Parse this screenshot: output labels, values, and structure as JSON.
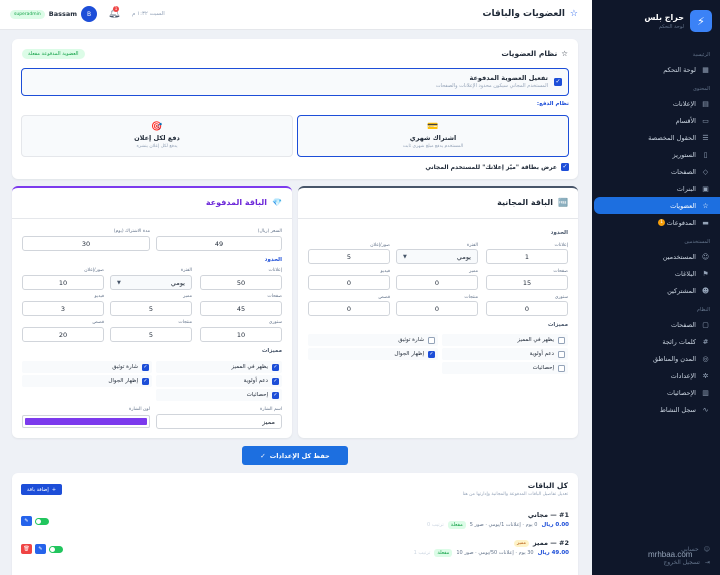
{
  "sidebar": {
    "brand_name": "حراج بلس",
    "brand_sub": "لوحة التحكم",
    "sections": [
      {
        "label": "الرئيسية",
        "items": [
          {
            "label": "لوحة التحكم",
            "icon": "grid-icon"
          }
        ]
      },
      {
        "label": "المحتوى",
        "items": [
          {
            "label": "الإعلانات",
            "icon": "document-icon"
          },
          {
            "label": "الأقسام",
            "icon": "folder-icon"
          },
          {
            "label": "الحقول المخصصة",
            "icon": "sliders-icon"
          },
          {
            "label": "الستوريز",
            "icon": "book-icon"
          },
          {
            "label": "الصفحات",
            "icon": "tag-icon"
          },
          {
            "label": "البنرات",
            "icon": "image-icon"
          },
          {
            "label": "العضويات",
            "icon": "star-icon",
            "active": true
          },
          {
            "label": "المدفوعات",
            "icon": "card-icon",
            "badge": "1"
          }
        ]
      },
      {
        "label": "المستخدمين",
        "items": [
          {
            "label": "المستخدمين",
            "icon": "users-icon"
          },
          {
            "label": "البلاغات",
            "icon": "flag-icon"
          },
          {
            "label": "المشتركين",
            "icon": "user-plus-icon"
          }
        ]
      },
      {
        "label": "النظام",
        "items": [
          {
            "label": "الصفحات",
            "icon": "pages-icon"
          },
          {
            "label": "كلمات رائجة",
            "icon": "hash-icon"
          },
          {
            "label": "المدن والمناطق",
            "icon": "globe-icon"
          },
          {
            "label": "الإعدادات",
            "icon": "gear-icon"
          },
          {
            "label": "الإحصائيات",
            "icon": "chart-icon"
          },
          {
            "label": "سجل النشاط",
            "icon": "activity-icon"
          }
        ]
      }
    ],
    "footer": [
      "حسابي",
      "تسجيل الخروج"
    ]
  },
  "topbar": {
    "title": "العضويات والباقات",
    "user_badge": "superadmin",
    "user_name": "Bassam",
    "avatar_letter": "B",
    "notif_count": "1",
    "date": "السبت ١:٣٢ م"
  },
  "system": {
    "title": "نظام العضويات",
    "status": "العضوية المدفوعة مفعلة",
    "enable_title": "تفعيل العضوية المدفوعة",
    "enable_desc": "المستخدم المجاني سيكون محدود الإعلانات والصفحات",
    "payment_label": "نظام الدفع:",
    "options": [
      {
        "title": "اشتراك شهري",
        "desc": "المستخدم يدفع مبلغ شهري ثابت",
        "icon": "💳",
        "selected": true
      },
      {
        "title": "دفع لكل إعلان",
        "desc": "يدفع لكل إعلان ينشره",
        "icon": "🎯",
        "selected": false
      }
    ],
    "featured_label": "عرض بطاقة \"ميّز إعلانك\" للمستخدم المجاني"
  },
  "free_plan": {
    "title": "الباقة المجانية",
    "icon": "🆓",
    "limits_label": "الحدود",
    "labels": {
      "ads": "إعلانات",
      "period": "الفترة",
      "images": "صور/إعلان",
      "pages": "صفحات",
      "featured": "مميز",
      "video": "فيديو",
      "stories": "ستوري",
      "products": "منتجات",
      "max_stories": "قصص"
    },
    "values": {
      "ads": "1",
      "period": "يومي",
      "images": "5",
      "pages": "15",
      "featured": "0",
      "video": "0",
      "stories": "0",
      "products": "0",
      "max_stories": "0"
    },
    "features_label": "مميزات",
    "features": [
      {
        "label": "يظهر في المميز",
        "checked": false
      },
      {
        "label": "شارة توثيق",
        "checked": false
      },
      {
        "label": "دعم أولوية",
        "checked": false
      },
      {
        "label": "إظهار الجوال",
        "checked": true
      },
      {
        "label": "إحصائيات",
        "checked": false
      }
    ]
  },
  "paid_plan": {
    "title": "الباقة المدفوعة",
    "icon": "💎",
    "labels": {
      "price": "السعر (ريال)",
      "duration": "مدة الاشتراك (يوم)",
      "ads": "إعلانات",
      "period": "الفترة",
      "images": "صور/إعلان",
      "pages": "صفحات",
      "featured": "مميز",
      "video": "فيديو",
      "stories": "ستوري",
      "products": "منتجات",
      "max_stories": "قصص",
      "badge_name": "اسم الشارة",
      "badge_color": "لون الشارة"
    },
    "values": {
      "price": "49",
      "duration": "30",
      "ads": "50",
      "period": "يومي",
      "images": "10",
      "pages": "45",
      "featured": "5",
      "video": "3",
      "stories": "10",
      "products": "5",
      "max_stories": "20",
      "badge_name": "مميز"
    },
    "limits_label": "الحدود",
    "features_label": "مميزات",
    "features": [
      {
        "label": "يظهر في المميز",
        "checked": true
      },
      {
        "label": "شارة توثيق",
        "checked": true
      },
      {
        "label": "دعم أولوية",
        "checked": true
      },
      {
        "label": "إظهار الجوال",
        "checked": true
      },
      {
        "label": "إحصائيات",
        "checked": true
      }
    ],
    "badge_color": "#7c3aed"
  },
  "save_label": "حفظ كل الإعدادات",
  "all_plans": {
    "title": "كل الباقات",
    "desc": "تعديل تفاصيل الباقات المدفوعة والمجانية وإدارتها من هنا",
    "add_label": "إضافة باقة",
    "rows": [
      {
        "name": "#1 — مجاني",
        "tag": "",
        "price": "0.00 ريال",
        "meta": "0 يوم · إعلانات 1/يومي · صور 5",
        "status": "مفعلة",
        "order": "ترتيب 0"
      },
      {
        "name": "#2 — مميز",
        "tag": "مميز",
        "price": "49.00 ريال",
        "meta": "30 يوم · إعلانات 50/يومي · صور 10",
        "status": "مفعلة",
        "order": "ترتيب 1"
      }
    ]
  },
  "watermark": "mrhbaa.com"
}
